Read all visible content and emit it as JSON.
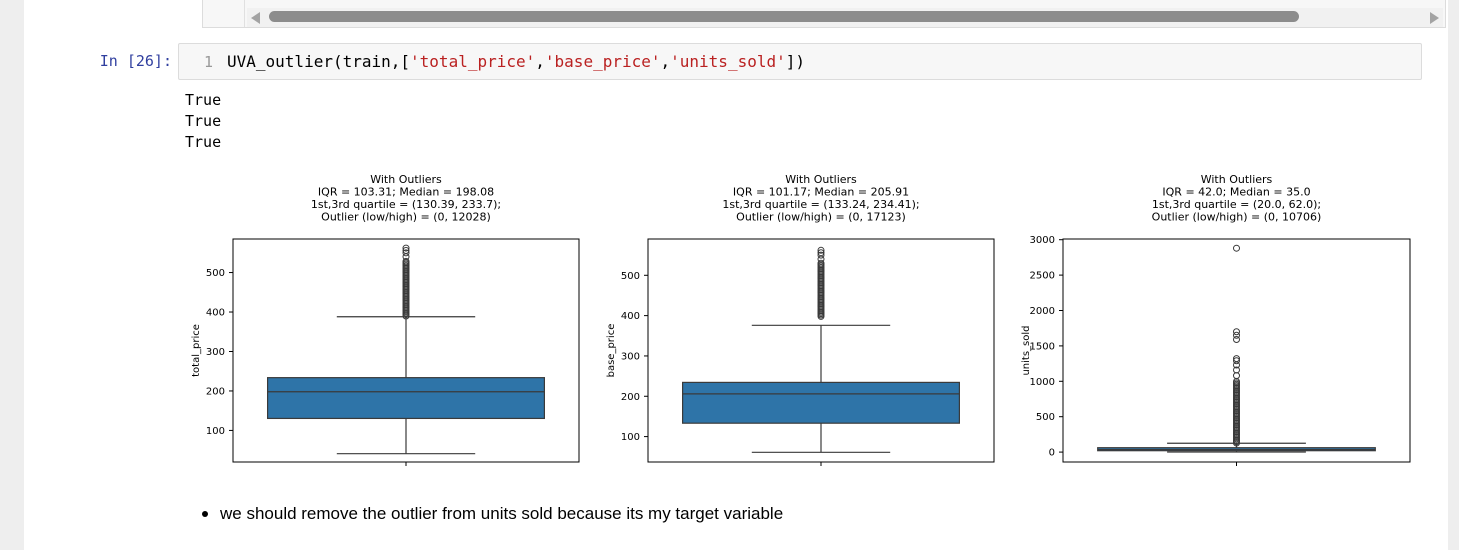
{
  "prev_cell": {},
  "cell": {
    "prompt": "In [26]:",
    "line_number": "1",
    "code_parts": [
      {
        "text": "UVA_outlier(train,[",
        "cls": ""
      },
      {
        "text": "'total_price'",
        "cls": "str"
      },
      {
        "text": ",",
        "cls": ""
      },
      {
        "text": "'base_price'",
        "cls": "str"
      },
      {
        "text": ",",
        "cls": ""
      },
      {
        "text": "'units_sold'",
        "cls": "str"
      },
      {
        "text": "])",
        "cls": ""
      }
    ]
  },
  "output": {
    "lines": [
      "True",
      "True",
      "True"
    ]
  },
  "markdown": {
    "bullet_text": "we should remove the outlier from units sold because its my target variable"
  },
  "colors": {
    "box_fill": "#2e74a8",
    "prompt": "#303f9f",
    "string": "#ba2121"
  },
  "chart_data": [
    {
      "type": "box",
      "title": [
        "With Outliers",
        "IQR = 103.31; Median = 198.08",
        "1st,3rd  quartile = (130.39, 233.7);",
        "Outlier (low/high) = (0, 12028)"
      ],
      "ylabel": "total_price",
      "yticks": [
        100,
        200,
        300,
        400,
        500
      ],
      "ylim": [
        20,
        585
      ],
      "whisker_low": 41,
      "q1": 130.39,
      "median": 198.08,
      "q3": 233.7,
      "whisker_high": 388,
      "outliers_dense": [
        390,
        530
      ],
      "outliers_sparse": [
        540,
        550,
        556,
        562
      ]
    },
    {
      "type": "box",
      "title": [
        "With Outliers",
        "IQR = 101.17; Median = 205.91",
        "1st,3rd  quartile = (133.24, 234.41);",
        "Outlier (low/high) = (0, 17123)"
      ],
      "ylabel": "base_price",
      "yticks": [
        100,
        200,
        300,
        400,
        500
      ],
      "ylim": [
        37,
        590
      ],
      "whisker_low": 61,
      "q1": 133.24,
      "median": 205.91,
      "q3": 234.41,
      "whisker_high": 376,
      "outliers_dense": [
        398,
        530
      ],
      "outliers_sparse": [
        540,
        550,
        556,
        562
      ]
    },
    {
      "type": "box",
      "title": [
        "With Outliers",
        "IQR = 42.0; Median = 35.0",
        "1st,3rd  quartile = (20.0, 62.0);",
        "Outlier (low/high) = (0, 10706)"
      ],
      "ylabel": "units_sold",
      "yticks": [
        0,
        500,
        1000,
        1500,
        2000,
        2500,
        3000
      ],
      "ylim": [
        -140,
        3010
      ],
      "whisker_low": 1,
      "q1": 20,
      "median": 35,
      "q3": 62,
      "whisker_high": 125,
      "outliers_dense": [
        128,
        1000
      ],
      "outliers_sparse": [
        1080,
        1160,
        1230,
        1290,
        1320,
        1590,
        1650,
        1700,
        2880
      ]
    }
  ]
}
